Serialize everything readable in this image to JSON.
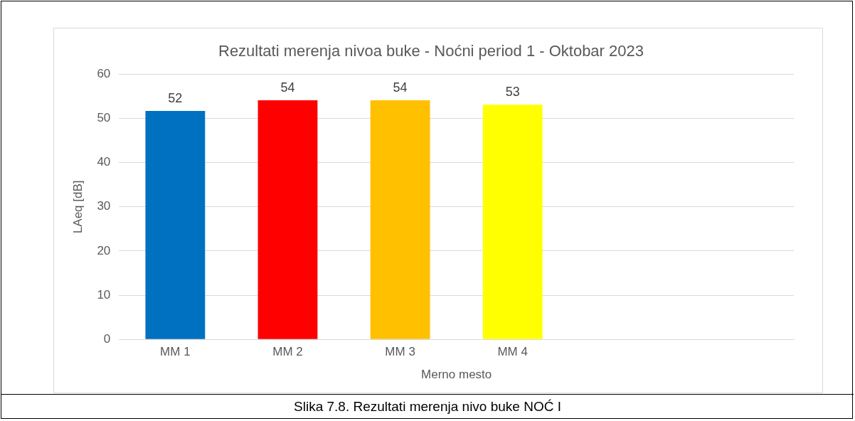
{
  "chart_data": {
    "type": "bar",
    "title": "Rezultati merenja nivoa buke - Noćni period 1 - Oktobar 2023",
    "xlabel": "Merno mesto",
    "ylabel": "LAeq [dB]",
    "categories": [
      "MM 1",
      "MM 2",
      "MM 3",
      "MM 4",
      null,
      null
    ],
    "values": [
      51.7,
      54.1,
      54.1,
      53.1,
      null,
      null
    ],
    "colors": [
      "#0070c0",
      "#ff0000",
      "#ffc000",
      "#ffff00",
      "#cccccc",
      "#cccccc"
    ],
    "value_labels": [
      "52",
      "54",
      "54",
      "53",
      null,
      null
    ],
    "ylim": [
      0,
      60
    ],
    "yticks": [
      0,
      10,
      20,
      30,
      40,
      50,
      60
    ],
    "grid": "y",
    "legend": false,
    "annotations": [
      "Slika 7.8. Rezultati merenja nivo buke NOĆ I"
    ]
  }
}
